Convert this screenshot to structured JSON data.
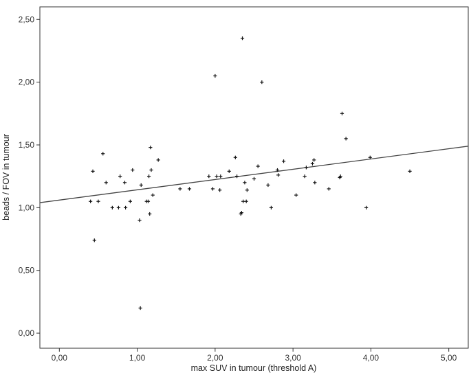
{
  "chart_data": {
    "type": "scatter",
    "title": "",
    "xlabel": "max SUV in tumour (threshold A)",
    "ylabel": "beads / FOV in tumour",
    "xlim": [
      -0.25,
      5.25
    ],
    "ylim": [
      -0.12,
      2.6
    ],
    "x_ticks": [
      0,
      1,
      2,
      3,
      4,
      5
    ],
    "x_tick_labels": [
      "0,00",
      "1,00",
      "2,00",
      "3,00",
      "4,00",
      "5,00"
    ],
    "y_ticks": [
      0,
      0.5,
      1,
      1.5,
      2,
      2.5
    ],
    "y_tick_labels": [
      "0,00",
      "0,50",
      "1,00",
      "1,50",
      "2,00",
      "2,50"
    ],
    "grid": false,
    "marker": "plus",
    "points": [
      {
        "x": 0.4,
        "y": 1.05
      },
      {
        "x": 0.43,
        "y": 1.29
      },
      {
        "x": 0.45,
        "y": 0.74
      },
      {
        "x": 0.5,
        "y": 1.05
      },
      {
        "x": 0.56,
        "y": 1.43
      },
      {
        "x": 0.6,
        "y": 1.2
      },
      {
        "x": 0.68,
        "y": 1.0
      },
      {
        "x": 0.76,
        "y": 1.0
      },
      {
        "x": 0.78,
        "y": 1.25
      },
      {
        "x": 0.84,
        "y": 1.2
      },
      {
        "x": 0.85,
        "y": 1.0
      },
      {
        "x": 0.91,
        "y": 1.05
      },
      {
        "x": 0.94,
        "y": 1.3
      },
      {
        "x": 1.03,
        "y": 0.9
      },
      {
        "x": 1.04,
        "y": 0.2
      },
      {
        "x": 1.05,
        "y": 1.18
      },
      {
        "x": 1.12,
        "y": 1.05
      },
      {
        "x": 1.14,
        "y": 1.05
      },
      {
        "x": 1.15,
        "y": 1.25
      },
      {
        "x": 1.16,
        "y": 0.95
      },
      {
        "x": 1.17,
        "y": 1.48
      },
      {
        "x": 1.18,
        "y": 1.3
      },
      {
        "x": 1.2,
        "y": 1.1
      },
      {
        "x": 1.27,
        "y": 1.38
      },
      {
        "x": 1.55,
        "y": 1.15
      },
      {
        "x": 1.67,
        "y": 1.15
      },
      {
        "x": 1.92,
        "y": 1.25
      },
      {
        "x": 1.97,
        "y": 1.15
      },
      {
        "x": 2.0,
        "y": 2.05
      },
      {
        "x": 2.02,
        "y": 1.25
      },
      {
        "x": 2.06,
        "y": 1.14
      },
      {
        "x": 2.07,
        "y": 1.25
      },
      {
        "x": 2.18,
        "y": 1.29
      },
      {
        "x": 2.26,
        "y": 1.4
      },
      {
        "x": 2.28,
        "y": 1.25
      },
      {
        "x": 2.33,
        "y": 0.95
      },
      {
        "x": 2.34,
        "y": 0.96
      },
      {
        "x": 2.35,
        "y": 2.35
      },
      {
        "x": 2.36,
        "y": 1.05
      },
      {
        "x": 2.38,
        "y": 1.2
      },
      {
        "x": 2.4,
        "y": 1.05
      },
      {
        "x": 2.41,
        "y": 1.14
      },
      {
        "x": 2.5,
        "y": 1.23
      },
      {
        "x": 2.55,
        "y": 1.33
      },
      {
        "x": 2.6,
        "y": 2.0
      },
      {
        "x": 2.68,
        "y": 1.18
      },
      {
        "x": 2.72,
        "y": 1.0
      },
      {
        "x": 2.8,
        "y": 1.3
      },
      {
        "x": 2.81,
        "y": 1.26
      },
      {
        "x": 2.88,
        "y": 1.37
      },
      {
        "x": 3.04,
        "y": 1.1
      },
      {
        "x": 3.15,
        "y": 1.25
      },
      {
        "x": 3.17,
        "y": 1.32
      },
      {
        "x": 3.25,
        "y": 1.35
      },
      {
        "x": 3.27,
        "y": 1.38
      },
      {
        "x": 3.28,
        "y": 1.2
      },
      {
        "x": 3.46,
        "y": 1.15
      },
      {
        "x": 3.6,
        "y": 1.24
      },
      {
        "x": 3.61,
        "y": 1.25
      },
      {
        "x": 3.63,
        "y": 1.75
      },
      {
        "x": 3.68,
        "y": 1.55
      },
      {
        "x": 3.94,
        "y": 1.0
      },
      {
        "x": 3.99,
        "y": 1.4
      },
      {
        "x": 4.5,
        "y": 1.29
      }
    ],
    "fit_line": {
      "x": [
        -0.25,
        5.25
      ],
      "y": [
        1.04,
        1.49
      ]
    }
  }
}
